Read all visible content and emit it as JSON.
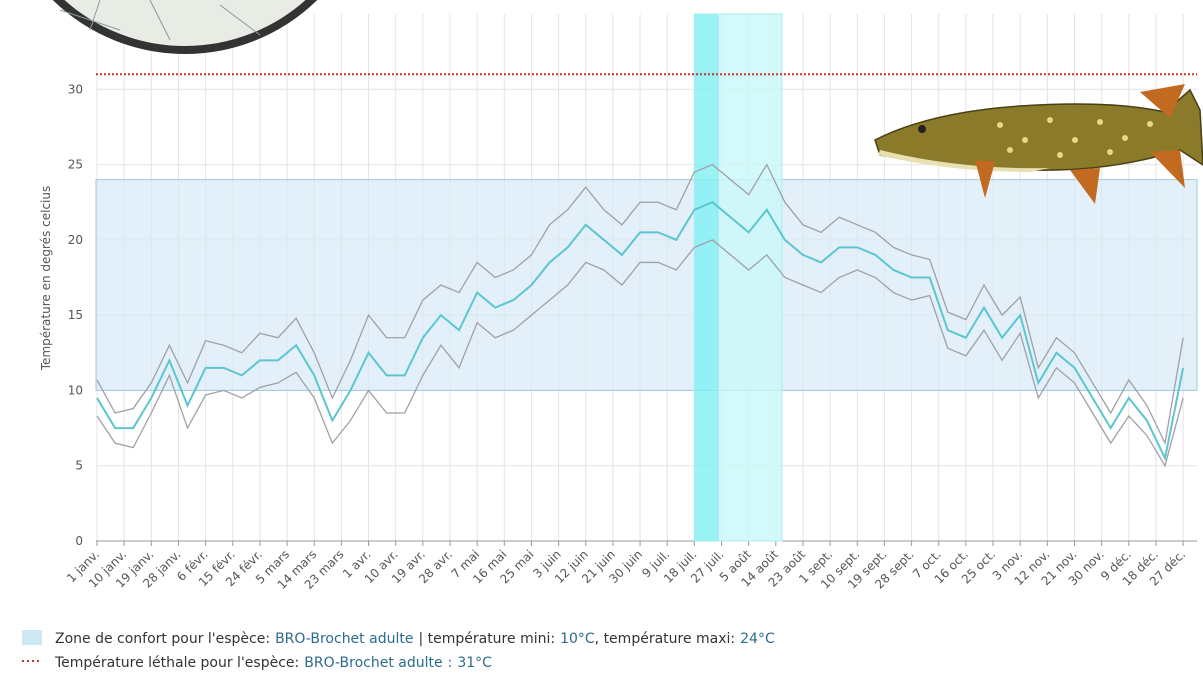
{
  "chart_data": {
    "type": "line",
    "y_label": "Température en degrés celcius",
    "x": [
      0,
      6,
      12,
      18,
      24,
      30,
      36,
      42,
      48,
      54,
      60,
      66,
      72,
      78,
      84,
      90,
      96,
      102,
      108,
      114,
      120,
      126,
      132,
      138,
      144,
      150,
      156,
      162,
      168,
      174,
      180,
      186,
      192,
      198,
      204,
      210,
      216,
      222,
      228,
      234,
      240,
      246,
      252,
      258,
      264,
      270,
      276,
      282,
      288,
      294,
      300,
      306,
      312,
      318,
      324,
      330,
      336,
      342,
      348,
      354,
      360
    ],
    "xlim": [
      0,
      364
    ],
    "xticks": [
      {
        "value": 0,
        "label": "1 janv."
      },
      {
        "value": 9,
        "label": "10 janv."
      },
      {
        "value": 18,
        "label": "19 janv."
      },
      {
        "value": 27,
        "label": "28 janv."
      },
      {
        "value": 36,
        "label": "6 févr."
      },
      {
        "value": 45,
        "label": "15 févr."
      },
      {
        "value": 54,
        "label": "24 févr."
      },
      {
        "value": 63,
        "label": "5 mars"
      },
      {
        "value": 72,
        "label": "14 mars"
      },
      {
        "value": 81,
        "label": "23 mars"
      },
      {
        "value": 90,
        "label": "1 avr."
      },
      {
        "value": 99,
        "label": "10 avr."
      },
      {
        "value": 108,
        "label": "19 avr."
      },
      {
        "value": 117,
        "label": "28 avr."
      },
      {
        "value": 126,
        "label": "7 mai"
      },
      {
        "value": 135,
        "label": "16 mai"
      },
      {
        "value": 144,
        "label": "25 mai"
      },
      {
        "value": 153,
        "label": "3 juin"
      },
      {
        "value": 162,
        "label": "12 juin"
      },
      {
        "value": 171,
        "label": "21 juin"
      },
      {
        "value": 180,
        "label": "30 juin"
      },
      {
        "value": 189,
        "label": "9 juil."
      },
      {
        "value": 198,
        "label": "18 juil."
      },
      {
        "value": 207,
        "label": "27 juil."
      },
      {
        "value": 216,
        "label": "5 août"
      },
      {
        "value": 225,
        "label": "14 août"
      },
      {
        "value": 234,
        "label": "23 août"
      },
      {
        "value": 243,
        "label": "1 sept."
      },
      {
        "value": 252,
        "label": "10 sept."
      },
      {
        "value": 261,
        "label": "19 sept."
      },
      {
        "value": 270,
        "label": "28 sept."
      },
      {
        "value": 279,
        "label": "7 oct."
      },
      {
        "value": 288,
        "label": "16 oct."
      },
      {
        "value": 297,
        "label": "25 oct."
      },
      {
        "value": 306,
        "label": "3 nov."
      },
      {
        "value": 315,
        "label": "12 nov."
      },
      {
        "value": 324,
        "label": "21 nov."
      },
      {
        "value": 333,
        "label": "30 nov."
      },
      {
        "value": 342,
        "label": "9 déc."
      },
      {
        "value": 351,
        "label": "18 déc."
      },
      {
        "value": 360,
        "label": "27 déc."
      }
    ],
    "ylim": [
      0,
      35
    ],
    "yticks": [
      0,
      5,
      10,
      15,
      20,
      25,
      30
    ],
    "grid": true,
    "series": [
      {
        "color": "#a0a0a8",
        "values": [
          10.7,
          8.5,
          8.8,
          10.5,
          13,
          10.5,
          13.3,
          13,
          12.5,
          13.8,
          13.5,
          14.8,
          12.5,
          9.5,
          12,
          15,
          13.5,
          13.5,
          16,
          17,
          16.5,
          18.5,
          17.5,
          18,
          19,
          21,
          22,
          23.5,
          22,
          21,
          22.5,
          22.5,
          22,
          24.5,
          25,
          24,
          23,
          25,
          22.5,
          21,
          20.5,
          21.5,
          21,
          20.5,
          19.5,
          19,
          18.7,
          15.2,
          14.7,
          17,
          15,
          16.2,
          11.5,
          13.5,
          12.5,
          10.5,
          8.5,
          10.7,
          9,
          6.5,
          13.5
        ]
      },
      {
        "color": "#a0a0a8",
        "values": [
          8.3,
          6.5,
          6.2,
          8.5,
          11,
          7.5,
          9.7,
          10,
          9.5,
          10.2,
          10.5,
          11.2,
          9.5,
          6.5,
          8,
          10,
          8.5,
          8.5,
          11,
          13,
          11.5,
          14.5,
          13.5,
          14,
          15,
          16,
          17,
          18.5,
          18,
          17,
          18.5,
          18.5,
          18,
          19.5,
          20,
          19,
          18,
          19,
          17.5,
          17,
          16.5,
          17.5,
          18,
          17.5,
          16.5,
          16,
          16.3,
          12.8,
          12.3,
          14,
          12,
          13.8,
          9.5,
          11.5,
          10.5,
          8.5,
          6.5,
          8.3,
          7,
          5,
          9.5
        ]
      },
      {
        "color": "#5cc6cf",
        "values": [
          9.5,
          7.5,
          7.5,
          9.5,
          12,
          9,
          11.5,
          11.5,
          11,
          12,
          12,
          13,
          11,
          8,
          10,
          12.5,
          11,
          11,
          13.5,
          15,
          14,
          16.5,
          15.5,
          16,
          17,
          18.5,
          19.5,
          21,
          20,
          19,
          20.5,
          20.5,
          20,
          22,
          22.5,
          21.5,
          20.5,
          22,
          20,
          19,
          18.5,
          19.5,
          19.5,
          19,
          18,
          17.5,
          17.5,
          14,
          13.5,
          15.5,
          13.5,
          15,
          10.5,
          12.5,
          11.5,
          9.5,
          7.5,
          9.5,
          8,
          5.5,
          11.5
        ]
      }
    ],
    "comfort_zone": {
      "min": 10,
      "max": 24,
      "color": "#d4e8f6"
    },
    "lethal": {
      "value": 31,
      "color": "#c0392b"
    },
    "highlight_periods": [
      {
        "start": 198,
        "end": 206,
        "color": "#7ff0f2"
      },
      {
        "start": 206,
        "end": 227,
        "color": "#c9f7f9"
      }
    ],
    "legend": {
      "comfort": {
        "prefix": "Zone de confort pour l'espèce:",
        "species": "BRO-Brochet adulte",
        "min_label": "| température mini:",
        "min": "10°C",
        "max_label": ", température maxi:",
        "max": "24°C"
      },
      "lethal": {
        "prefix": "Température léthale pour l'espèce:",
        "species": "BRO-Brochet adulte",
        "sep": ":",
        "value": "31°C"
      }
    }
  }
}
